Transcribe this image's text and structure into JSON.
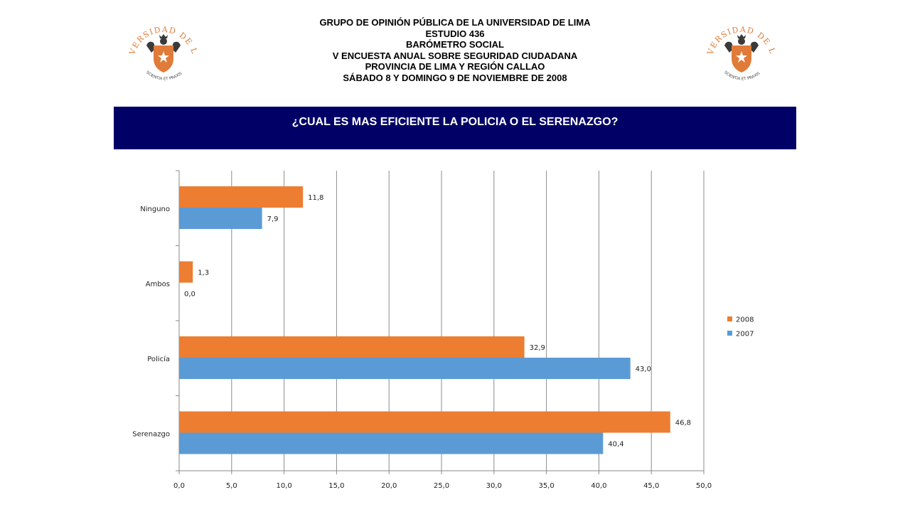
{
  "header": {
    "lines": [
      "GRUPO DE OPINIÓN PÚBLICA DE LA UNIVERSIDAD DE LIMA",
      "ESTUDIO 436",
      "BARÓMETRO SOCIAL",
      "V ENCUESTA ANUAL SOBRE SEGURIDAD CIUDADANA",
      "PROVINCIA DE LIMA Y REGIÓN CALLAO",
      "SÁBADO 8 Y DOMINGO 9 DE NOVIEMBRE DE 2008"
    ]
  },
  "logo": {
    "arc_text": "UNIVERSIDAD DE LIMA",
    "motto": "SCIENTIA ET PRAXIS",
    "colors": {
      "orange": "#E07B39",
      "dark": "#3a3a3a"
    }
  },
  "title_band": {
    "text": "¿CUAL ES MAS EFICIENTE LA POLICIA O EL SERENAZGO?",
    "color": "#000066"
  },
  "chart_data": {
    "type": "bar",
    "orientation": "horizontal",
    "title": "¿CUAL ES MAS EFICIENTE LA POLICIA O EL SERENAZGO?",
    "categories": [
      "Ninguno",
      "Ambos",
      "Policía",
      "Serenazgo"
    ],
    "series": [
      {
        "name": "2008",
        "color": "#ED7D31",
        "values": [
          11.8,
          1.3,
          32.9,
          46.8
        ],
        "labels": [
          "11,8",
          "1,3",
          "32,9",
          "46,8"
        ]
      },
      {
        "name": "2007",
        "color": "#5B9BD5",
        "values": [
          7.9,
          0.0,
          43.0,
          40.4
        ],
        "labels": [
          "7,9",
          "0,0",
          "43,0",
          "40,4"
        ]
      }
    ],
    "xlim": [
      0,
      50
    ],
    "x_ticks": [
      "0,0",
      "5,0",
      "10,0",
      "15,0",
      "20,0",
      "25,0",
      "30,0",
      "35,0",
      "40,0",
      "45,0",
      "50,0"
    ],
    "grid": true,
    "legend_position": "right"
  }
}
